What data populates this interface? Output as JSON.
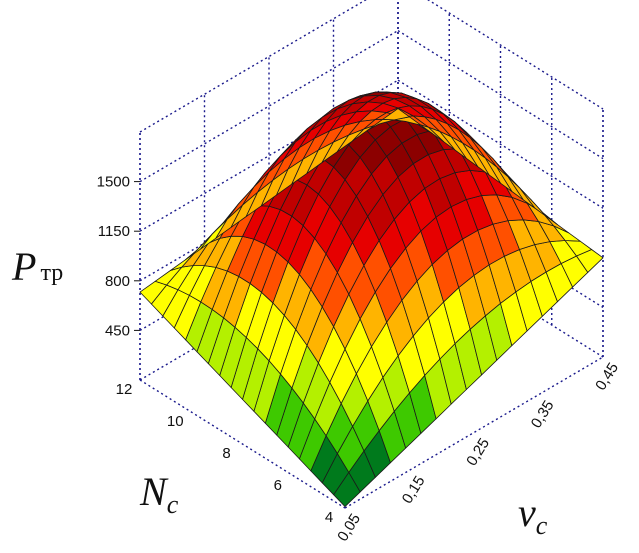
{
  "chart_data": {
    "type": "surface",
    "title": "",
    "zlabel": {
      "main": "P",
      "sub": "тр"
    },
    "xlabel": {
      "main": "v",
      "sub": "c"
    },
    "ylabel": {
      "main": "N",
      "sub": "c"
    },
    "x_ticks": [
      "0,05",
      "0,15",
      "0,25",
      "0,35",
      "0,45"
    ],
    "y_ticks": [
      "4",
      "6",
      "8",
      "10",
      "12"
    ],
    "z_ticks": [
      "450",
      "800",
      "1150",
      "1500"
    ],
    "xlim": [
      0.05,
      0.45
    ],
    "ylim": [
      4,
      12
    ],
    "zlim": [
      100,
      1850
    ],
    "x_grid": [
      0.05,
      0.0736,
      0.0971,
      0.1206,
      0.1441,
      0.1676,
      0.1912,
      0.2147,
      0.2382,
      0.2618,
      0.2853,
      0.3088,
      0.3324,
      0.3559,
      0.3794,
      0.4029,
      0.4265,
      0.45
    ],
    "y_grid": [
      4,
      4.444,
      4.889,
      5.333,
      5.778,
      6.222,
      6.667,
      7.111,
      7.556,
      8,
      8.444,
      8.889,
      9.333,
      9.778,
      10.222,
      10.667,
      11.111,
      11.556,
      12
    ],
    "corner_values": {
      "v0.05_N12": 720,
      "v0.45_N12": 950,
      "v0.05_N4": 110,
      "v0.45_N4": 800,
      "peak": 1850
    },
    "colormap": [
      "#007a1c",
      "#3ec900",
      "#b4f000",
      "#ffff00",
      "#ffb400",
      "#ff5000",
      "#e60000",
      "#c00000",
      "#8c0000"
    ],
    "grid": true,
    "box": true
  }
}
